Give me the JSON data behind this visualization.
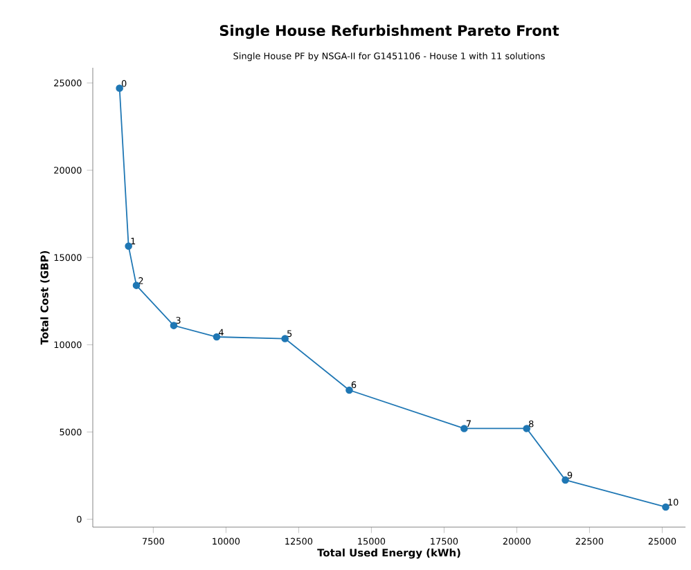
{
  "chart_data": {
    "type": "line",
    "title": "Single House Refurbishment Pareto Front",
    "subtitle": "Single House PF by NSGA-II for G1451106 - House 1 with 11 solutions",
    "xlabel": "Total Used Energy (kWh)",
    "ylabel": "Total Cost (GBP)",
    "x": [
      6340,
      6650,
      6920,
      8205,
      9680,
      12030,
      14240,
      18190,
      20340,
      21670,
      25120
    ],
    "series": [
      {
        "color": "#1f77b4",
        "values": [
          24700,
          15650,
          13400,
          11100,
          10450,
          10350,
          7400,
          5200,
          5200,
          2250,
          700
        ]
      }
    ],
    "marker": "circle",
    "line_style": "solid",
    "grid": false,
    "xlim": [
      5420,
      25800
    ],
    "ylim": [
      -450,
      25870
    ],
    "xticks": [
      7500,
      10000,
      12500,
      15000,
      17500,
      20000,
      22500,
      25000
    ],
    "yticks": [
      0,
      5000,
      10000,
      15000,
      20000,
      25000
    ],
    "annotations": [
      {
        "text": "0",
        "x": 6340,
        "y": 24680
      },
      {
        "text": "1",
        "x": 6650,
        "y": 15660
      },
      {
        "text": "2",
        "x": 6920,
        "y": 13390
      },
      {
        "text": "3",
        "x": 8205,
        "y": 11110
      },
      {
        "text": "4",
        "x": 9680,
        "y": 10430
      },
      {
        "text": "5",
        "x": 12030,
        "y": 10350
      },
      {
        "text": "6",
        "x": 14240,
        "y": 7420
      },
      {
        "text": "7",
        "x": 18190,
        "y": 5200
      },
      {
        "text": "8",
        "x": 20340,
        "y": 5180
      },
      {
        "text": "9",
        "x": 21670,
        "y": 2240
      },
      {
        "text": "10",
        "x": 25120,
        "y": 690
      }
    ]
  }
}
